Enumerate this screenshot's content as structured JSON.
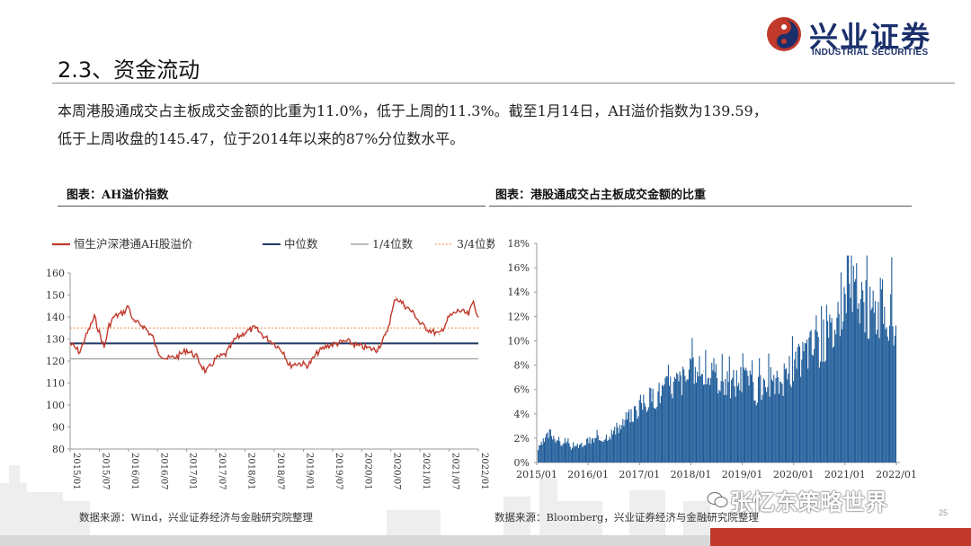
{
  "header": {
    "logo_cn": "兴业证券",
    "logo_en": "INDUSTRIAL SECURITIES",
    "page_title": "2.3、资金流动"
  },
  "paragraph": {
    "line1": "本周港股通成交占主板成交金额的比重为11.0%，低于上周的11.3%。截至1月14日，AH溢价指数为139.59，",
    "line2": "低于上周收盘的145.47，位于2014年以来的87%分位数水平。"
  },
  "left_panel": {
    "title": "图表：AH溢价指数",
    "source": "数据来源：Wind，兴业证券经济与金融研究院整理"
  },
  "right_panel": {
    "title": "图表：港股通成交占主板成交金额的比重",
    "source": "数据来源：Bloomberg，兴业证券经济与金融研究院整理"
  },
  "watermark": "张忆东策略世界",
  "page_number": "25",
  "colors": {
    "brand_navy": "#1a2f6b",
    "brand_red": "#c0392b",
    "series_red": "#c0392b",
    "median_navy": "#1f3864",
    "quartile_gray": "#a6a6a6",
    "quartile_orange": "#f4b183",
    "bar_blue": "#1f5c99"
  },
  "chart_data": [
    {
      "type": "line",
      "title": "",
      "legend_position": "top",
      "ylim": [
        80,
        160
      ],
      "yticks": [
        80,
        90,
        100,
        110,
        120,
        130,
        140,
        150,
        160
      ],
      "xtick_labels": [
        "2015/01",
        "2015/07",
        "2016/01",
        "2016/07",
        "2017/01",
        "2017/07",
        "2018/01",
        "2018/07",
        "2019/01",
        "2019/07",
        "2020/01",
        "2020/07",
        "2021/01",
        "2021/07",
        "2022/01"
      ],
      "x_start": "2015/01",
      "x_end": "2022/01",
      "series": [
        {
          "name": "恒生沪深港通AH股溢价",
          "color": "#c0392b",
          "x": [
            "2015/01",
            "2015/03",
            "2015/04",
            "2015/06",
            "2015/07",
            "2015/08",
            "2015/09",
            "2015/10",
            "2015/12",
            "2016/01",
            "2016/02",
            "2016/04",
            "2016/06",
            "2016/07",
            "2016/09",
            "2016/11",
            "2017/01",
            "2017/03",
            "2017/04",
            "2017/05",
            "2017/07",
            "2017/09",
            "2017/11",
            "2018/01",
            "2018/03",
            "2018/05",
            "2018/07",
            "2018/09",
            "2018/10",
            "2018/12",
            "2019/02",
            "2019/04",
            "2019/06",
            "2019/08",
            "2019/10",
            "2019/12",
            "2020/02",
            "2020/04",
            "2020/05",
            "2020/06",
            "2020/07",
            "2020/08",
            "2020/10",
            "2020/12",
            "2021/01",
            "2021/03",
            "2021/05",
            "2021/07",
            "2021/09",
            "2021/11",
            "2021/12",
            "2022/01"
          ],
          "values": [
            128,
            124,
            130,
            140,
            133,
            126,
            136,
            140,
            142,
            145,
            138,
            136,
            131,
            124,
            121,
            122,
            125,
            122,
            118,
            115,
            121,
            123,
            130,
            133,
            135,
            131,
            128,
            124,
            118,
            119,
            118,
            124,
            127,
            128,
            129,
            127,
            126,
            125,
            128,
            132,
            140,
            149,
            145,
            141,
            137,
            134,
            132,
            140,
            143,
            141,
            147,
            140
          ]
        },
        {
          "name": "中位数",
          "color": "#1f3864",
          "constant": 128
        },
        {
          "name": "1/4位数",
          "color": "#a6a6a6",
          "constant": 121
        },
        {
          "name": "3/4位数",
          "color": "#f4b183",
          "constant": 135
        }
      ]
    },
    {
      "type": "bar",
      "title": "",
      "ylim": [
        0,
        18
      ],
      "yticks": [
        "0%",
        "2%",
        "4%",
        "6%",
        "8%",
        "10%",
        "12%",
        "14%",
        "16%",
        "18%"
      ],
      "xtick_labels": [
        "2015/01",
        "2016/01",
        "2017/01",
        "2018/01",
        "2019/01",
        "2020/01",
        "2021/01",
        "2022/01"
      ],
      "x_start": "2015/01",
      "x_end": "2022/01",
      "series": [
        {
          "name": "港股通成交占主板成交金额的比重",
          "color": "#1f5c99",
          "x": [
            "2015/01",
            "2015/04",
            "2015/07",
            "2015/10",
            "2016/01",
            "2016/04",
            "2016/07",
            "2016/10",
            "2017/01",
            "2017/04",
            "2017/07",
            "2017/10",
            "2018/01",
            "2018/04",
            "2018/07",
            "2018/10",
            "2019/01",
            "2019/04",
            "2019/07",
            "2019/10",
            "2020/01",
            "2020/04",
            "2020/07",
            "2020/10",
            "2021/01",
            "2021/02",
            "2021/04",
            "2021/07",
            "2021/10",
            "2022/01"
          ],
          "values": [
            1.0,
            2.5,
            1.5,
            1.2,
            1.8,
            2.0,
            2.6,
            3.5,
            4.8,
            5.5,
            6.2,
            6.8,
            7.4,
            7.5,
            7.2,
            6.5,
            7.2,
            6.0,
            6.3,
            6.8,
            7.8,
            9.5,
            10.0,
            11.0,
            14.5,
            16.5,
            13.5,
            12.5,
            13.0,
            11.0
          ]
        }
      ]
    }
  ]
}
